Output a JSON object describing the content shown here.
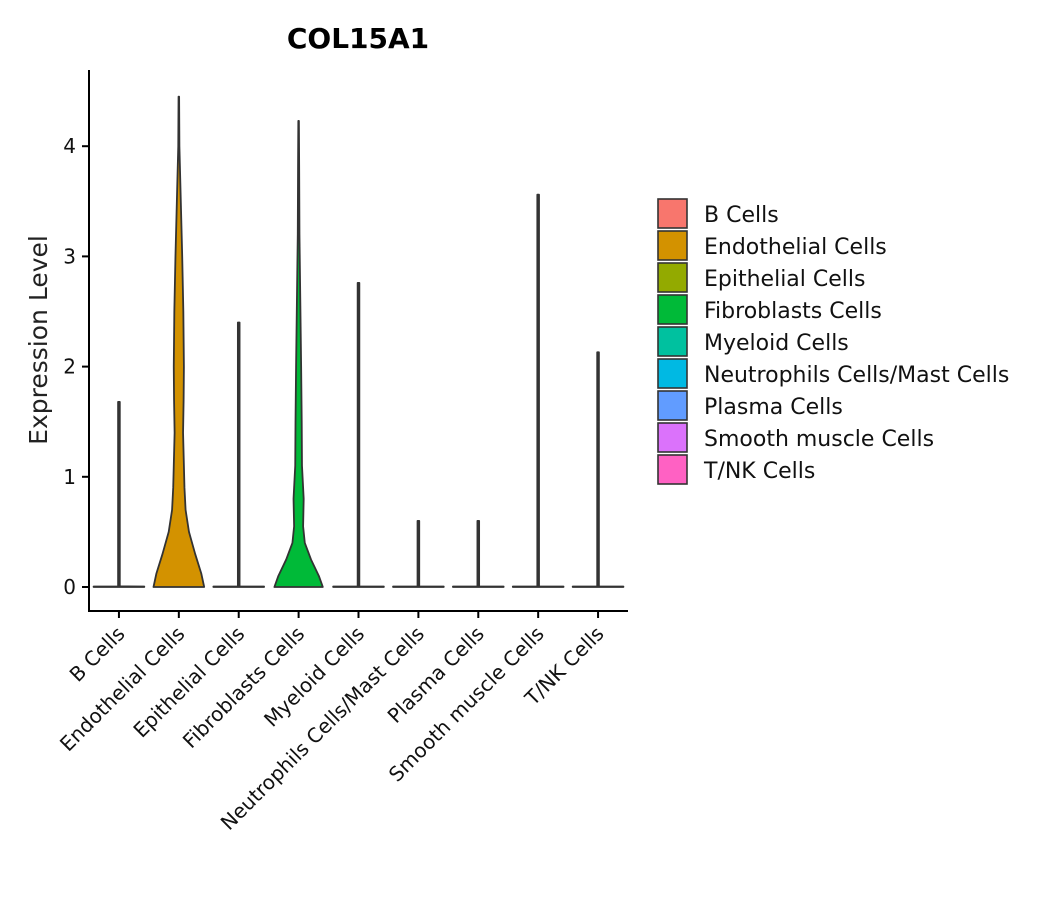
{
  "chart_data": {
    "type": "violin",
    "title": "COL15A1",
    "xlabel": "",
    "ylabel": "Expression Level",
    "ylim": [
      -0.2,
      4.7
    ],
    "yticks": [
      0,
      1,
      2,
      3,
      4
    ],
    "legend_title": "",
    "legend_position": "right",
    "categories": [
      "B Cells",
      "Endothelial Cells",
      "Epithelial Cells",
      "Fibroblasts Cells",
      "Myeloid Cells",
      "Neutrophils Cells/Mast Cells",
      "Plasma Cells",
      "Smooth muscle Cells",
      "T/NK Cells"
    ],
    "colors": [
      "#F8766D",
      "#D39200",
      "#93AA00",
      "#00BA38",
      "#00C19F",
      "#00B9E3",
      "#619CFF",
      "#DB72FB",
      "#FF61C3"
    ],
    "max_values": [
      1.68,
      4.45,
      2.4,
      4.23,
      2.76,
      0.6,
      0.6,
      3.56,
      2.13
    ],
    "density_profiles": [
      [
        [
          0,
          0.9
        ],
        [
          0.002,
          0.9
        ],
        [
          0.004,
          0.9
        ],
        [
          0.006,
          0.03
        ],
        [
          0.1,
          0.03
        ],
        [
          1.68,
          0.03
        ]
      ],
      [
        [
          0,
          0.9
        ],
        [
          0.12,
          0.8
        ],
        [
          0.3,
          0.58
        ],
        [
          0.5,
          0.36
        ],
        [
          0.7,
          0.24
        ],
        [
          0.9,
          0.2
        ],
        [
          1.1,
          0.18
        ],
        [
          1.4,
          0.15
        ],
        [
          1.7,
          0.17
        ],
        [
          2.0,
          0.18
        ],
        [
          2.5,
          0.16
        ],
        [
          3.0,
          0.12
        ],
        [
          3.5,
          0.07
        ],
        [
          4.0,
          0.02
        ],
        [
          4.45,
          0.01
        ]
      ],
      [
        [
          0,
          0.9
        ],
        [
          0.002,
          0.9
        ],
        [
          0.004,
          0.9
        ],
        [
          0.006,
          0.03
        ],
        [
          0.1,
          0.03
        ],
        [
          2.4,
          0.03
        ]
      ],
      [
        [
          0,
          0.86
        ],
        [
          0.1,
          0.72
        ],
        [
          0.25,
          0.44
        ],
        [
          0.4,
          0.22
        ],
        [
          0.55,
          0.16
        ],
        [
          0.8,
          0.18
        ],
        [
          1.1,
          0.12
        ],
        [
          1.5,
          0.11
        ],
        [
          2.0,
          0.09
        ],
        [
          2.6,
          0.06
        ],
        [
          3.2,
          0.03
        ],
        [
          3.8,
          0.02
        ],
        [
          4.23,
          0.01
        ]
      ],
      [
        [
          0,
          0.9
        ],
        [
          0.002,
          0.9
        ],
        [
          0.004,
          0.9
        ],
        [
          0.006,
          0.03
        ],
        [
          0.1,
          0.03
        ],
        [
          2.76,
          0.03
        ]
      ],
      [
        [
          0,
          0.9
        ],
        [
          0.002,
          0.9
        ],
        [
          0.004,
          0.9
        ],
        [
          0.006,
          0.03
        ],
        [
          0.1,
          0.03
        ],
        [
          0.6,
          0.03
        ]
      ],
      [
        [
          0,
          0.9
        ],
        [
          0.002,
          0.9
        ],
        [
          0.004,
          0.9
        ],
        [
          0.006,
          0.03
        ],
        [
          0.1,
          0.03
        ],
        [
          0.6,
          0.03
        ]
      ],
      [
        [
          0,
          0.9
        ],
        [
          0.002,
          0.9
        ],
        [
          0.004,
          0.9
        ],
        [
          0.006,
          0.03
        ],
        [
          0.1,
          0.03
        ],
        [
          3.56,
          0.03
        ]
      ],
      [
        [
          0,
          0.9
        ],
        [
          0.002,
          0.9
        ],
        [
          0.004,
          0.9
        ],
        [
          0.006,
          0.03
        ],
        [
          0.1,
          0.03
        ],
        [
          2.13,
          0.03
        ]
      ]
    ]
  }
}
